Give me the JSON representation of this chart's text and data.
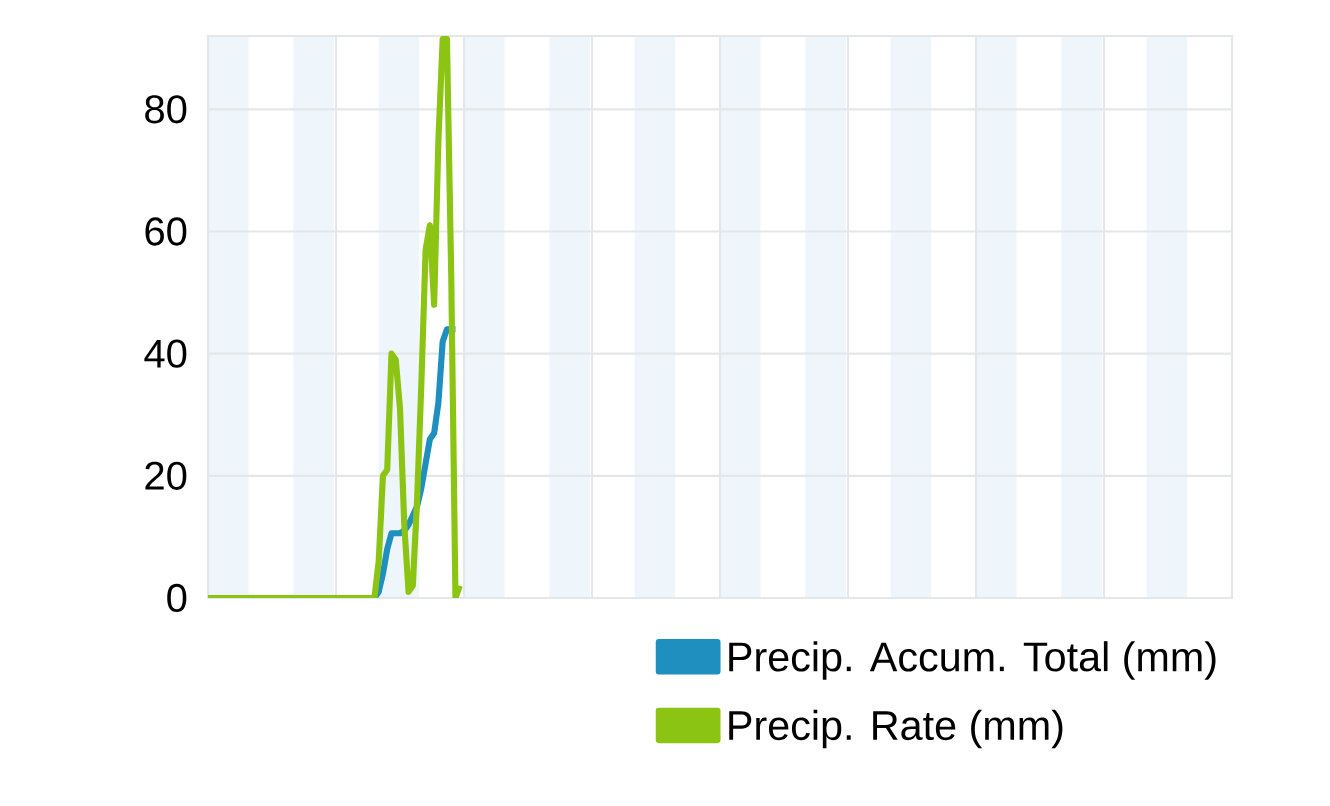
{
  "chart_data": {
    "type": "line",
    "tick_labels": "y",
    "grid": "y",
    "legend": "bottom right",
    "ylim": [
      0,
      92
    ],
    "yticks": [
      0,
      20,
      40,
      60,
      80
    ],
    "categories": [
      null,
      null,
      null,
      null,
      null,
      null,
      null,
      null,
      null,
      null,
      null,
      null,
      null,
      null,
      null,
      null,
      null,
      null,
      null,
      null,
      null,
      null,
      null,
      null,
      null,
      null,
      null,
      null,
      null,
      null,
      null,
      null,
      null,
      null,
      null,
      null,
      null,
      null,
      null,
      null,
      null,
      null,
      null,
      null,
      null,
      null,
      null,
      null,
      null,
      null,
      null,
      null,
      null,
      null,
      null,
      null,
      null,
      null,
      null,
      null,
      null,
      null,
      null,
      null,
      null,
      null,
      null,
      null,
      null,
      null,
      null,
      null,
      null,
      null,
      null,
      null,
      null,
      null,
      null,
      null,
      null,
      null,
      null,
      null,
      null,
      null,
      null,
      null,
      null,
      null,
      null,
      null,
      null,
      null,
      null,
      null,
      null,
      null,
      null,
      null,
      null,
      null,
      null,
      null,
      null,
      null,
      null,
      null,
      null,
      null,
      null,
      null,
      null,
      null,
      null,
      null,
      null,
      null,
      null,
      null,
      null,
      null,
      null,
      null,
      null,
      null,
      null,
      null,
      null,
      null,
      null,
      null,
      null,
      null,
      null,
      null,
      null,
      null,
      null,
      null,
      null,
      null,
      null,
      null,
      null,
      null,
      null,
      null,
      null,
      null,
      null,
      null,
      null,
      null,
      null,
      null,
      null,
      null,
      null,
      null,
      null,
      null,
      null,
      null,
      null,
      null,
      null,
      null,
      null,
      null,
      null,
      null,
      null,
      null,
      null,
      null,
      null,
      null,
      null,
      null,
      null,
      null,
      null,
      null,
      null,
      null,
      null,
      null,
      null,
      null,
      null,
      null,
      null,
      null,
      null,
      null,
      null,
      null,
      null,
      null,
      null,
      null,
      null,
      null,
      null,
      null,
      null,
      null,
      null,
      null,
      null,
      null,
      null,
      null,
      null,
      null,
      null,
      null,
      null,
      null,
      null,
      null,
      null,
      null,
      null,
      null,
      null,
      null,
      null,
      null,
      null,
      null,
      null,
      null,
      null,
      null,
      null,
      null,
      null,
      null,
      null
    ],
    "series": [
      {
        "name": "Precip. Accum. Total (mm)",
        "color": "#1f8fc0",
        "values": [
          null,
          null,
          null,
          null,
          null,
          null,
          null,
          null,
          null,
          null,
          null,
          null,
          null,
          null,
          null,
          null,
          null,
          null,
          null,
          null,
          null,
          null,
          null,
          null,
          null,
          null,
          null,
          null,
          null,
          null,
          null,
          null,
          null,
          null,
          null,
          null,
          null,
          null,
          null,
          0,
          1,
          4,
          8,
          10.6,
          10.6,
          10.6,
          11,
          12,
          13.5,
          15,
          18,
          22,
          26,
          27,
          32,
          42,
          44,
          44,
          44,
          null,
          null,
          null,
          null,
          null,
          null,
          null,
          null,
          null,
          null,
          null,
          null,
          null,
          null,
          null,
          null,
          null,
          null,
          null,
          null,
          null,
          null,
          null,
          null,
          null,
          null,
          null,
          null,
          null,
          null,
          null,
          null,
          null,
          null,
          null,
          null,
          null,
          null,
          null,
          null,
          null,
          null,
          null,
          null,
          null,
          null,
          null,
          null,
          null,
          null,
          null,
          null,
          null,
          null,
          null,
          null,
          null,
          null,
          null,
          null,
          null,
          null,
          null,
          null,
          null,
          null,
          null,
          null,
          null,
          null,
          null,
          null,
          null,
          null,
          null,
          null,
          null,
          null,
          null,
          null,
          null,
          null,
          null,
          null,
          null,
          null,
          null,
          null,
          null,
          null,
          null,
          null,
          null,
          null,
          null,
          null,
          null,
          null,
          null,
          null,
          null,
          null,
          null,
          null,
          null,
          null,
          null,
          null,
          null,
          null,
          null,
          null,
          null,
          null,
          null,
          null,
          null,
          null,
          null,
          null,
          null,
          null,
          null,
          null,
          null,
          null,
          null,
          null,
          null,
          null,
          null,
          null,
          null,
          null,
          null,
          null,
          null,
          null,
          null,
          null,
          null,
          null,
          null,
          null,
          null,
          null,
          null,
          null,
          null,
          null,
          null,
          null,
          null,
          null,
          null,
          null,
          null,
          null,
          null,
          null,
          null,
          null,
          null,
          null,
          null,
          null,
          null,
          null,
          null,
          null,
          null,
          null,
          null,
          null,
          null,
          null,
          null,
          null,
          null,
          null,
          null,
          null
        ]
      },
      {
        "name": "Precip. Rate (mm)",
        "color": "#8cc414",
        "values": [
          0,
          0,
          0,
          0,
          0,
          0,
          0,
          0,
          0,
          0,
          0,
          0,
          0,
          0,
          0,
          0,
          0,
          0,
          0,
          0,
          0,
          0,
          0,
          0,
          0,
          0,
          0,
          0,
          0,
          0,
          0,
          0,
          0,
          0,
          0,
          0,
          0,
          0,
          0,
          0,
          6,
          20,
          21,
          40,
          39,
          31,
          12,
          1,
          2,
          16,
          35,
          57,
          61,
          48,
          75,
          91.5,
          91.5,
          53,
          0,
          2,
          null,
          null,
          null,
          null,
          null,
          null,
          null,
          null,
          null,
          null,
          null,
          null,
          null,
          null,
          null,
          null,
          null,
          null,
          null,
          null,
          null,
          null,
          null,
          null,
          null,
          null,
          null,
          null,
          null,
          null,
          null,
          null,
          null,
          null,
          null,
          null,
          null,
          null,
          null,
          null,
          null,
          null,
          null,
          null,
          null,
          null,
          null,
          null,
          null,
          null,
          null,
          null,
          null,
          null,
          null,
          null,
          null,
          null,
          null,
          null,
          null,
          null,
          null,
          null,
          null,
          null,
          null,
          null,
          null,
          null,
          null,
          null,
          null,
          null,
          null,
          null,
          null,
          null,
          null,
          null,
          null,
          null,
          null,
          null,
          null,
          null,
          null,
          null,
          null,
          null,
          null,
          null,
          null,
          null,
          null,
          null,
          null,
          null,
          null,
          null,
          null,
          null,
          null,
          null,
          null,
          null,
          null,
          null,
          null,
          null,
          null,
          null,
          null,
          null,
          null,
          null,
          null,
          null,
          null,
          null,
          null,
          null,
          null,
          null,
          null,
          null,
          null,
          null,
          null,
          null,
          null,
          null,
          null,
          null,
          null,
          null,
          null,
          null,
          null,
          null,
          null,
          null,
          null,
          null,
          null,
          null,
          null,
          null,
          null,
          null,
          null,
          null,
          null,
          null,
          null,
          null,
          null,
          null,
          null,
          null,
          null,
          null,
          null,
          null,
          null,
          null,
          null,
          null,
          null,
          null,
          null,
          null,
          null,
          null,
          null,
          null,
          null,
          null,
          null,
          null,
          null
        ]
      }
    ]
  }
}
